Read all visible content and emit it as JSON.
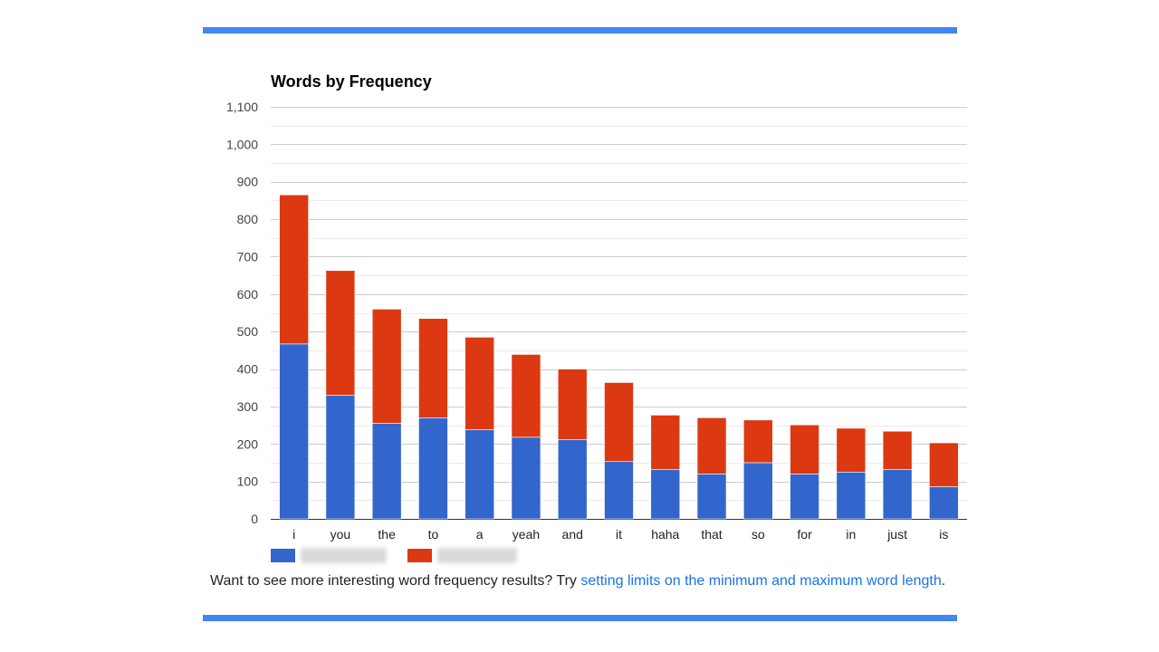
{
  "colors": {
    "accent_rule": "#4285f4",
    "series_1": "#3366cc",
    "series_2": "#dc3912",
    "link": "#1a73e8"
  },
  "chart_data": {
    "type": "bar",
    "stacked": true,
    "title": "Words by Frequency",
    "xlabel": "",
    "ylabel": "",
    "ylim": [
      0,
      1100
    ],
    "yticks": [
      "0",
      "100",
      "200",
      "300",
      "400",
      "500",
      "600",
      "700",
      "800",
      "900",
      "1,000",
      "1,100"
    ],
    "grid": true,
    "legend_position": "bottom",
    "categories": [
      "i",
      "you",
      "the",
      "to",
      "a",
      "yeah",
      "and",
      "it",
      "haha",
      "that",
      "so",
      "for",
      "in",
      "just",
      "is"
    ],
    "series": [
      {
        "color": "#3366cc",
        "values": [
          467,
          330,
          255,
          270,
          238,
          218,
          212,
          153,
          132,
          120,
          150,
          120,
          125,
          132,
          86
        ]
      },
      {
        "color": "#dc3912",
        "values": [
          398,
          333,
          305,
          265,
          247,
          221,
          188,
          211,
          145,
          150,
          114,
          131,
          117,
          102,
          117
        ]
      }
    ]
  },
  "footer": {
    "prefix": "Want to see more interesting word frequency results? Try ",
    "link_text": "setting limits on the minimum and maximum word length",
    "suffix": "."
  }
}
